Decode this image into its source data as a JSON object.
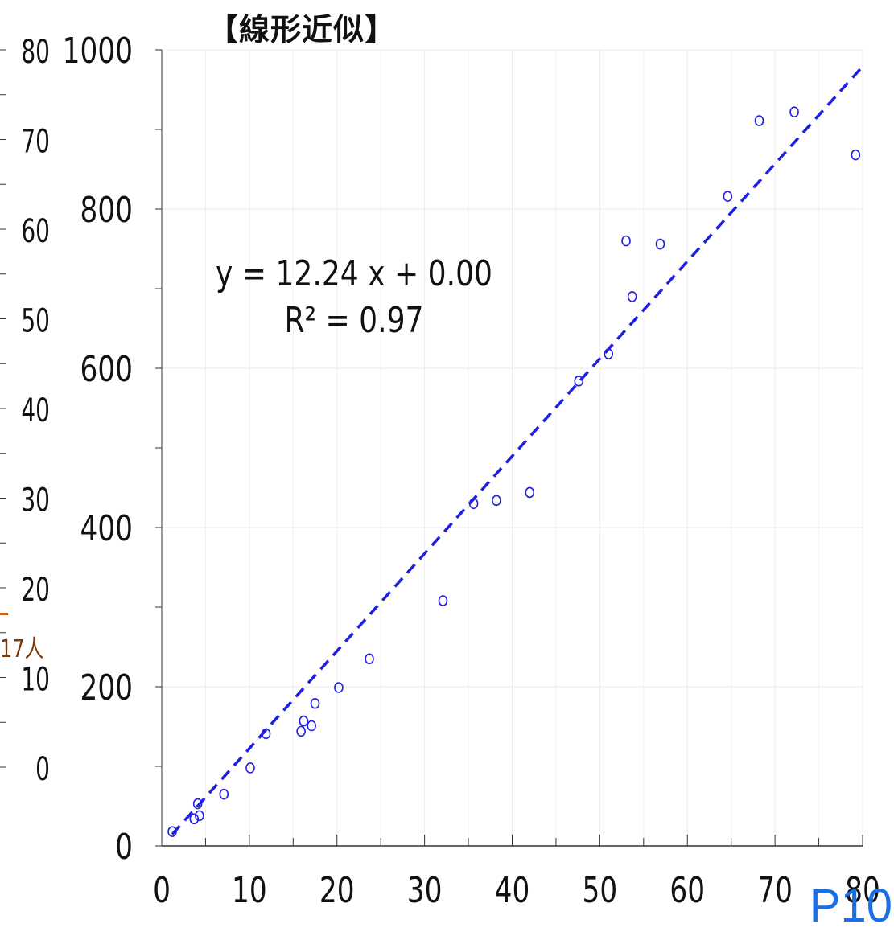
{
  "title": "【線形近似】",
  "page_label": "P10",
  "left_fragment_text": "17人",
  "left_axis": {
    "ticks": [
      "80",
      "70",
      "60",
      "50",
      "40",
      "30",
      "20",
      "10",
      "0"
    ]
  },
  "colors": {
    "points": "#1f1fe0",
    "trendline": "#1f1fe0",
    "grid": "#e8e8e8",
    "axis": "#333333",
    "page_label": "#1a6fe6",
    "left_fragment": "#7a3a0e"
  },
  "chart_data": {
    "type": "scatter",
    "title": "【線形近似】",
    "xlabel": "",
    "ylabel": "",
    "xlim": [
      0,
      80
    ],
    "ylim": [
      0,
      1000
    ],
    "x_ticks": [
      "0",
      "10",
      "20",
      "30",
      "40",
      "50",
      "60",
      "70",
      "80"
    ],
    "y_ticks": [
      "0",
      "200",
      "400",
      "600",
      "800",
      "1000"
    ],
    "grid": true,
    "points": [
      {
        "x": 1.2,
        "y": 18
      },
      {
        "x": 3.7,
        "y": 34
      },
      {
        "x": 4.3,
        "y": 38
      },
      {
        "x": 4.1,
        "y": 53
      },
      {
        "x": 7.1,
        "y": 65
      },
      {
        "x": 10.1,
        "y": 98
      },
      {
        "x": 11.9,
        "y": 141
      },
      {
        "x": 15.9,
        "y": 144
      },
      {
        "x": 16.2,
        "y": 157
      },
      {
        "x": 17.1,
        "y": 151
      },
      {
        "x": 17.5,
        "y": 179
      },
      {
        "x": 20.2,
        "y": 199
      },
      {
        "x": 23.7,
        "y": 235
      },
      {
        "x": 32.1,
        "y": 308
      },
      {
        "x": 35.6,
        "y": 430
      },
      {
        "x": 38.2,
        "y": 434
      },
      {
        "x": 42.0,
        "y": 444
      },
      {
        "x": 47.6,
        "y": 584
      },
      {
        "x": 51.0,
        "y": 618
      },
      {
        "x": 53.0,
        "y": 760
      },
      {
        "x": 53.7,
        "y": 690
      },
      {
        "x": 56.9,
        "y": 756
      },
      {
        "x": 64.6,
        "y": 816
      },
      {
        "x": 68.2,
        "y": 911
      },
      {
        "x": 72.2,
        "y": 922
      },
      {
        "x": 79.2,
        "y": 868
      }
    ],
    "trendline": {
      "style": "dashed",
      "slope": 12.24,
      "intercept": 0.0,
      "x_range": [
        1.2,
        80
      ],
      "equation_label": "y = 12.24 x + 0.00",
      "r2_label": "R² = 0.97"
    }
  }
}
